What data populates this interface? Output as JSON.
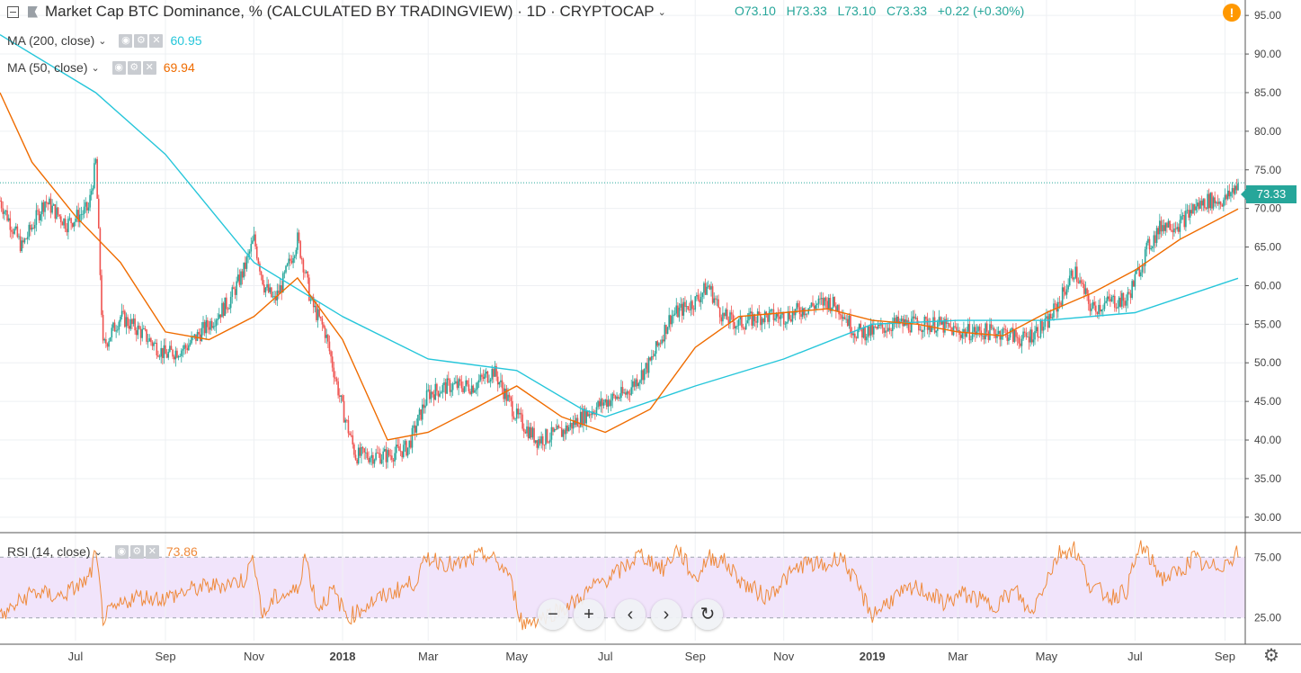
{
  "title": "Market Cap BTC Dominance, % (CALCULATED BY TRADINGVIEW) · 1D · CRYPTOCAP",
  "ohlc": {
    "open": "O73.10",
    "high": "H73.33",
    "low": "L73.10",
    "close": "C73.33",
    "change": "+0.22 (+0.30%)"
  },
  "indicators": [
    {
      "label": "MA (200, close)",
      "value": "60.95",
      "color": "#26c6da"
    },
    {
      "label": "MA (50, close)",
      "value": "69.94",
      "color": "#ef6c00"
    },
    {
      "label": "RSI (14, close)",
      "value": "73.86",
      "color": "#ef8a3b"
    }
  ],
  "last_price_label": "73.33",
  "icons": {
    "warning": "warning-icon",
    "settings": "gear-icon",
    "collapse": "collapse-icon",
    "zoom_out": "minus-icon",
    "zoom_in": "plus-icon",
    "scroll_left": "chevron-left-icon",
    "scroll_right": "chevron-right-icon",
    "reset": "reset-icon"
  },
  "nav_glyphs": {
    "zoom_out": "−",
    "zoom_in": "+",
    "left": "‹",
    "right": "›",
    "reset": "↻",
    "settings": "⚙",
    "warning": "!"
  },
  "colors": {
    "up": "#26a69a",
    "down": "#ef5350",
    "ma200": "#26c6da",
    "ma50": "#ef6c00",
    "rsi": "#ef8a3b",
    "rsi_band": "#f1e4fb"
  },
  "chart_data": {
    "type": "line",
    "price_axis": {
      "ticks": [
        "95.00",
        "90.00",
        "85.00",
        "80.00",
        "75.00",
        "70.00",
        "65.00",
        "60.00",
        "55.00",
        "50.00",
        "45.00",
        "40.00",
        "35.00",
        "30.00"
      ],
      "ylim": [
        28,
        97
      ]
    },
    "rsi_axis": {
      "ticks": [
        "75.00",
        "25.00"
      ],
      "ylim": [
        15,
        85
      ],
      "band": [
        30,
        70
      ]
    },
    "time_axis": {
      "ticks": [
        "Jul",
        "Sep",
        "Nov",
        "2018",
        "Mar",
        "May",
        "Jul",
        "Sep",
        "Nov",
        "2019",
        "Mar",
        "May",
        "Jul",
        "Sep"
      ],
      "tick_dates": [
        "2017-07-01",
        "2017-09-01",
        "2017-11-01",
        "2018-01-01",
        "2018-03-01",
        "2018-05-01",
        "2018-07-01",
        "2018-09-01",
        "2018-11-01",
        "2019-01-01",
        "2019-03-01",
        "2019-05-01",
        "2019-07-01",
        "2019-09-01"
      ],
      "range": [
        "2017-05-10",
        "2019-09-10"
      ]
    },
    "series": [
      {
        "name": "MA (200, close)",
        "dates": [
          "2017-05-10",
          "2017-07-15",
          "2017-09-01",
          "2017-11-01",
          "2018-01-01",
          "2018-03-01",
          "2018-05-01",
          "2018-06-15",
          "2018-07-01",
          "2018-09-01",
          "2018-11-01",
          "2019-01-01",
          "2019-03-01",
          "2019-05-01",
          "2019-07-01",
          "2019-09-10"
        ],
        "values": [
          92.5,
          85,
          77,
          63,
          56,
          50.5,
          49,
          44,
          43,
          47,
          50.5,
          55,
          55.5,
          55.5,
          56.5,
          60.95
        ]
      },
      {
        "name": "MA (50, close)",
        "dates": [
          "2017-05-10",
          "2017-06-01",
          "2017-07-01",
          "2017-08-01",
          "2017-09-01",
          "2017-10-01",
          "2017-11-01",
          "2017-12-01",
          "2018-01-01",
          "2018-02-01",
          "2018-03-01",
          "2018-04-01",
          "2018-05-01",
          "2018-06-01",
          "2018-07-01",
          "2018-08-01",
          "2018-09-01",
          "2018-10-01",
          "2018-11-01",
          "2018-12-01",
          "2019-01-01",
          "2019-02-01",
          "2019-03-01",
          "2019-04-01",
          "2019-05-01",
          "2019-06-01",
          "2019-07-01",
          "2019-08-01",
          "2019-09-10"
        ],
        "values": [
          85,
          76,
          69,
          63,
          54,
          53,
          56,
          61,
          53,
          40,
          41,
          44,
          47,
          43,
          41,
          44,
          52,
          56,
          56.5,
          57,
          55.5,
          55,
          54,
          53.5,
          56.5,
          59,
          62,
          66,
          69.94
        ]
      },
      {
        "name": "close",
        "dates": [
          "2017-05-10",
          "2017-05-25",
          "2017-06-10",
          "2017-06-25",
          "2017-07-10",
          "2017-07-15",
          "2017-07-20",
          "2017-08-01",
          "2017-08-15",
          "2017-09-01",
          "2017-09-15",
          "2017-10-01",
          "2017-10-15",
          "2017-10-25",
          "2017-11-01",
          "2017-11-08",
          "2017-11-15",
          "2017-11-20",
          "2017-12-01",
          "2017-12-06",
          "2017-12-10",
          "2017-12-20",
          "2018-01-01",
          "2018-01-10",
          "2018-01-20",
          "2018-02-01",
          "2018-02-15",
          "2018-03-01",
          "2018-03-15",
          "2018-04-01",
          "2018-04-15",
          "2018-05-01",
          "2018-05-15",
          "2018-06-01",
          "2018-06-15",
          "2018-07-01",
          "2018-07-15",
          "2018-08-01",
          "2018-08-15",
          "2018-09-01",
          "2018-09-10",
          "2018-09-20",
          "2018-10-01",
          "2018-10-15",
          "2018-11-01",
          "2018-11-15",
          "2018-12-01",
          "2018-12-10",
          "2018-12-20",
          "2019-01-01",
          "2019-01-15",
          "2019-02-01",
          "2019-02-15",
          "2019-03-01",
          "2019-03-15",
          "2019-04-01",
          "2019-04-15",
          "2019-05-01",
          "2019-05-10",
          "2019-05-20",
          "2019-06-01",
          "2019-06-15",
          "2019-06-25",
          "2019-07-10",
          "2019-07-20",
          "2019-08-01",
          "2019-08-10",
          "2019-08-20",
          "2019-09-01",
          "2019-09-10"
        ],
        "values": [
          71,
          65,
          71,
          68,
          70,
          76,
          52,
          56,
          54,
          51,
          52,
          55,
          58,
          62,
          66,
          60,
          58,
          60,
          66,
          62,
          58,
          54,
          44,
          38,
          38,
          38,
          39,
          46,
          47,
          47,
          49,
          43,
          40,
          41,
          43,
          45,
          46,
          50,
          56,
          58,
          60,
          56,
          55,
          56,
          56,
          57,
          58,
          57,
          54,
          54,
          55,
          55,
          55,
          54,
          54,
          54,
          53,
          55,
          58,
          62,
          57,
          58,
          58,
          65,
          68,
          68,
          70,
          71,
          71,
          73.33
        ]
      },
      {
        "name": "RSI (14, close)",
        "dates": [
          "2017-05-10",
          "2017-06-01",
          "2017-06-20",
          "2017-07-10",
          "2017-07-15",
          "2017-07-20",
          "2017-08-10",
          "2017-09-01",
          "2017-09-20",
          "2017-10-10",
          "2017-10-25",
          "2017-11-01",
          "2017-11-07",
          "2017-11-15",
          "2017-12-01",
          "2017-12-06",
          "2017-12-15",
          "2017-12-25",
          "2018-01-05",
          "2018-01-20",
          "2018-02-05",
          "2018-02-20",
          "2018-03-01",
          "2018-03-20",
          "2018-04-10",
          "2018-04-25",
          "2018-05-05",
          "2018-05-20",
          "2018-06-10",
          "2018-06-25",
          "2018-07-10",
          "2018-07-25",
          "2018-08-10",
          "2018-08-20",
          "2018-09-01",
          "2018-09-10",
          "2018-09-20",
          "2018-10-05",
          "2018-10-20",
          "2018-11-01",
          "2018-11-15",
          "2018-12-01",
          "2018-12-10",
          "2018-12-20",
          "2019-01-01",
          "2019-01-15",
          "2019-02-01",
          "2019-02-20",
          "2019-03-05",
          "2019-03-25",
          "2019-04-10",
          "2019-04-20",
          "2019-05-01",
          "2019-05-10",
          "2019-05-20",
          "2019-06-01",
          "2019-06-15",
          "2019-06-25",
          "2019-07-05",
          "2019-07-20",
          "2019-08-01",
          "2019-08-10",
          "2019-08-20",
          "2019-09-01",
          "2019-09-10"
        ],
        "values": [
          30,
          47,
          44,
          55,
          72,
          30,
          44,
          43,
          49,
          52,
          55,
          70,
          30,
          43,
          48,
          72,
          36,
          48,
          30,
          40,
          47,
          54,
          70,
          64,
          72,
          60,
          26,
          31,
          40,
          52,
          60,
          72,
          62,
          76,
          55,
          70,
          68,
          52,
          44,
          55,
          66,
          64,
          72,
          54,
          32,
          43,
          50,
          40,
          46,
          38,
          48,
          32,
          56,
          73,
          76,
          50,
          44,
          48,
          78,
          56,
          60,
          70,
          62,
          66,
          73.86
        ]
      }
    ]
  }
}
